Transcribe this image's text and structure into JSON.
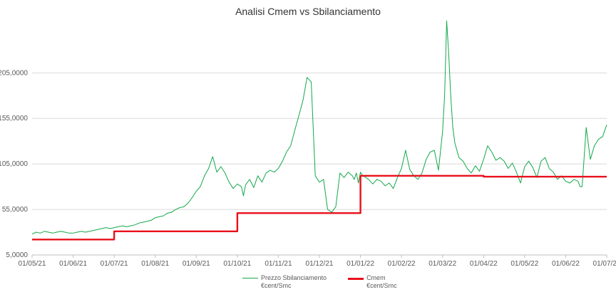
{
  "chart_data": {
    "type": "line",
    "title": "Analisi Cmem vs Sbilanciamento",
    "xlabel": "",
    "ylabel": "",
    "ylim": [
      5,
      260
    ],
    "y_ticks": [
      "5,0000",
      "55,0000",
      "105,0000",
      "155,0000",
      "205,0000"
    ],
    "y_tick_values": [
      5,
      55,
      105,
      155,
      205
    ],
    "x_ticks": [
      "01/05/21",
      "01/06/21",
      "01/07/21",
      "01/08/21",
      "01/09/21",
      "01/10/21",
      "01/11/21",
      "01/12/21",
      "01/01/22",
      "01/02/22",
      "01/03/22",
      "01/04/22",
      "01/05/22",
      "01/06/22",
      "01/07/22"
    ],
    "grid": "horizontal",
    "legend_position": "bottom",
    "series": [
      {
        "name": "Prezzo Sbilanciamento €cent/Smc",
        "legend_lines": [
          "Prezzo Sbilanciamento",
          "€cent/Smc"
        ],
        "color": "#13a84a",
        "x": [
          0,
          0.1,
          0.2,
          0.3,
          0.4,
          0.5,
          0.6,
          0.7,
          0.8,
          0.9,
          1.0,
          1.1,
          1.2,
          1.3,
          1.4,
          1.5,
          1.6,
          1.7,
          1.8,
          1.9,
          2.0,
          2.1,
          2.2,
          2.3,
          2.4,
          2.5,
          2.6,
          2.7,
          2.8,
          2.9,
          3.0,
          3.1,
          3.2,
          3.3,
          3.4,
          3.5,
          3.6,
          3.7,
          3.8,
          3.9,
          4.0,
          4.1,
          4.2,
          4.3,
          4.4,
          4.5,
          4.6,
          4.7,
          4.8,
          4.9,
          5.0,
          5.1,
          5.15,
          5.2,
          5.3,
          5.4,
          5.5,
          5.6,
          5.7,
          5.8,
          5.9,
          6.0,
          6.1,
          6.2,
          6.3,
          6.4,
          6.5,
          6.6,
          6.7,
          6.8,
          6.9,
          7.0,
          7.1,
          7.2,
          7.3,
          7.4,
          7.5,
          7.6,
          7.7,
          7.8,
          7.85,
          7.9,
          7.95,
          8.0,
          8.05,
          8.1,
          8.2,
          8.3,
          8.4,
          8.5,
          8.6,
          8.7,
          8.8,
          8.9,
          9.0,
          9.1,
          9.2,
          9.3,
          9.4,
          9.5,
          9.6,
          9.7,
          9.8,
          9.9,
          10.0,
          10.05,
          10.1,
          10.15,
          10.2,
          10.25,
          10.3,
          10.4,
          10.5,
          10.6,
          10.7,
          10.8,
          10.9,
          11.0,
          11.1,
          11.2,
          11.3,
          11.4,
          11.5,
          11.6,
          11.7,
          11.8,
          11.9,
          12.0,
          12.1,
          12.2,
          12.3,
          12.4,
          12.5,
          12.6,
          12.7,
          12.8,
          12.9,
          13.0,
          13.1,
          13.2,
          13.3,
          13.35,
          13.4,
          13.5,
          13.6,
          13.7,
          13.8,
          13.9,
          14.0
        ],
        "values": [
          28,
          30,
          29,
          31,
          30,
          29,
          30,
          31,
          30,
          29,
          29,
          30,
          31,
          30,
          31,
          32,
          33,
          34,
          35,
          34,
          35,
          36,
          37,
          36,
          37,
          38,
          40,
          41,
          42,
          43,
          46,
          47,
          48,
          51,
          52,
          55,
          57,
          58,
          62,
          68,
          75,
          80,
          92,
          100,
          113,
          96,
          102,
          95,
          85,
          78,
          83,
          80,
          70,
          82,
          88,
          79,
          92,
          85,
          95,
          98,
          96,
          100,
          108,
          118,
          125,
          142,
          158,
          175,
          200,
          195,
          92,
          85,
          88,
          55,
          52,
          58,
          95,
          90,
          96,
          92,
          88,
          95,
          84,
          96,
          92,
          91,
          88,
          83,
          88,
          86,
          81,
          84,
          78,
          90,
          100,
          120,
          99,
          92,
          88,
          95,
          110,
          118,
          120,
          98,
          140,
          180,
          262,
          225,
          180,
          145,
          128,
          112,
          108,
          100,
          95,
          103,
          97,
          110,
          125,
          118,
          109,
          112,
          108,
          100,
          106,
          96,
          84,
          102,
          108,
          101,
          90,
          108,
          112,
          100,
          96,
          88,
          92,
          86,
          84,
          88,
          86,
          80,
          80,
          145,
          110,
          125,
          132,
          135,
          148
        ]
      },
      {
        "name": "Cmem €cent/Smc",
        "legend_lines": [
          "Cmem",
          "€cent/Smc"
        ],
        "color": "#e8101b",
        "x": [
          0,
          2,
          2,
          5,
          5,
          8,
          8,
          11,
          11,
          14
        ],
        "values": [
          22,
          22,
          31,
          31,
          51,
          51,
          92,
          92,
          91,
          91
        ]
      }
    ]
  }
}
